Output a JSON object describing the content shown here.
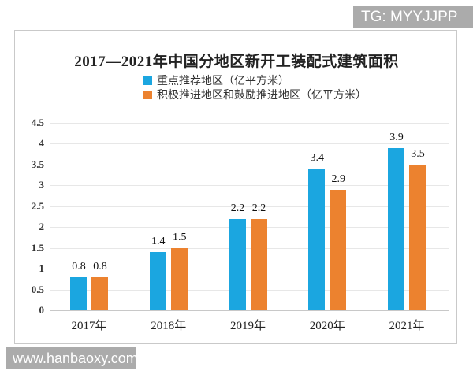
{
  "watermarks": {
    "top_right": "TG: MYYJJPP",
    "bottom_left": "www.hanbaoxy.com"
  },
  "chart_data": {
    "type": "bar",
    "title": "2017—2021年中国分地区新开工装配式建筑面积",
    "categories": [
      "2017年",
      "2018年",
      "2019年",
      "2020年",
      "2021年"
    ],
    "series": [
      {
        "name": "重点推荐地区（亿平方米）",
        "color": "#1ba6e0",
        "values": [
          0.8,
          1.4,
          2.2,
          3.4,
          3.9
        ]
      },
      {
        "name": "积极推进地区和鼓励推进地区（亿平方米）",
        "color": "#ec822f",
        "values": [
          0.8,
          1.5,
          2.2,
          2.9,
          3.5
        ]
      }
    ],
    "ylim": [
      0,
      4.5
    ],
    "ytick_step": 0.5,
    "ytick_labels": [
      "0",
      "0.5",
      "1",
      "1.5",
      "2",
      "2.5",
      "3",
      "3.5",
      "4",
      "4.5"
    ],
    "xlabel": "",
    "ylabel": "",
    "grid": true,
    "legend_position": "top-left-of-plot"
  },
  "colors": {
    "watermark_bg": "#ababab",
    "panel_border": "#c9c9c9",
    "gridline": "#e7e7e7",
    "baseline": "#c8c8c8"
  }
}
